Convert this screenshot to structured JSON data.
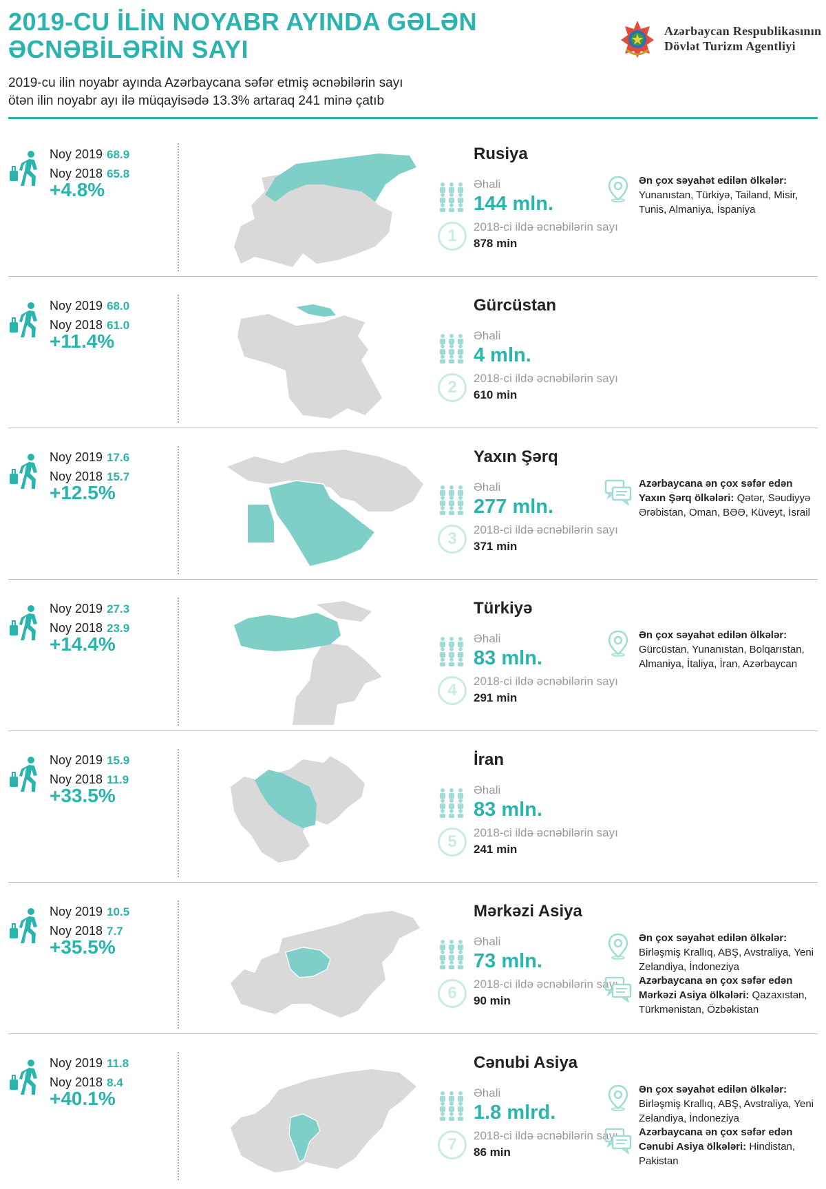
{
  "header": {
    "title_line1": "2019-CU İLİN NOYABR AYINDA GƏLƏN",
    "title_line2": "ƏCNƏBİLƏRİN SAYI",
    "subtitle_line1": "2019-cu ilin noyabr ayında Azərbaycana səfər etmiş əcnəbilərin sayı",
    "subtitle_line2": "ötən ilin noyabr ayı ilə müqayisədə 13.3% artaraq 241 minə çatıb",
    "agency_line1": "Azərbaycan Respublikasının",
    "agency_line2": "Dövlət Turizm Agentliyi"
  },
  "labels": {
    "nov2019": "Noy 2019",
    "nov2018": "Noy 2018",
    "population": "Əhali",
    "visitors_2018": "2018-ci ildə əcnəbilərin sayı"
  },
  "colors": {
    "accent": "#2bb3ad",
    "map_grey": "#d9d9d9"
  },
  "rows": [
    {
      "nov2019": "68.9",
      "nov2018": "65.8",
      "change": "+4.8%",
      "country": "Rusiya",
      "population": "144 mln.",
      "rank": "1",
      "visitors_2018": "878 min",
      "info": [
        {
          "icon": "location-pin-icon",
          "heading": "Ən çox səyahət edilən ölkələr:",
          "text": "Yunanıstan, Türkiyə, Tailand, Misir, Tunis, Almaniya, İspaniya"
        }
      ]
    },
    {
      "nov2019": "68.0",
      "nov2018": "61.0",
      "change": "+11.4%",
      "country": "Gürcüstan",
      "population": "4 mln.",
      "rank": "2",
      "visitors_2018": "610 min",
      "info": []
    },
    {
      "nov2019": "17.6",
      "nov2018": "15.7",
      "change": "+12.5%",
      "country": "Yaxın Şərq",
      "population": "277 mln.",
      "rank": "3",
      "visitors_2018": "371 min",
      "info": [
        {
          "icon": "chat-bubbles-icon",
          "heading": "Azərbaycana ən çox səfər edən Yaxın Şərq ölkələri:",
          "text": "Qətər, Səudiyyə Ərəbistan, Oman, BƏƏ, Küveyt, İsrail"
        }
      ]
    },
    {
      "nov2019": "27.3",
      "nov2018": "23.9",
      "change": "+14.4%",
      "country": "Türkiyə",
      "population": "83 mln.",
      "rank": "4",
      "visitors_2018": "291 min",
      "info": [
        {
          "icon": "location-pin-icon",
          "heading": "Ən çox səyahət edilən ölkələr:",
          "text": "Gürcüstan, Yunanıstan, Bolqarıstan, Almaniya, İtaliya, İran, Azərbaycan"
        }
      ]
    },
    {
      "nov2019": "15.9",
      "nov2018": "11.9",
      "change": "+33.5%",
      "country": "İran",
      "population": "83 mln.",
      "rank": "5",
      "visitors_2018": "241 min",
      "info": []
    },
    {
      "nov2019": "10.5",
      "nov2018": "7.7",
      "change": "+35.5%",
      "country": "Mərkəzi Asiya",
      "population": "73 mln.",
      "rank": "6",
      "visitors_2018": "90 min",
      "info": [
        {
          "icon": "location-pin-icon",
          "heading": "Ən çox səyahət edilən ölkələr:",
          "text": "Birləşmiş Krallıq, ABŞ, Avstraliya, Yeni Zelandiya, İndoneziya"
        },
        {
          "icon": "chat-bubbles-icon",
          "heading": "Azərbaycana ən çox səfər edən Mərkəzi Asiya ölkələri:",
          "text": "Qazaxıstan, Türkmənistan, Özbəkistan"
        }
      ]
    },
    {
      "nov2019": "11.8",
      "nov2018": "8.4",
      "change": "+40.1%",
      "country": "Cənubi Asiya",
      "population": "1.8 mlrd.",
      "rank": "7",
      "visitors_2018": "86  min",
      "info": [
        {
          "icon": "location-pin-icon",
          "heading": "Ən çox səyahət edilən ölkələr:",
          "text": "Birləşmiş Krallıq, ABŞ, Avstraliya, Yeni Zelandiya, İndoneziya"
        },
        {
          "icon": "chat-bubbles-icon",
          "heading": "Azərbaycana ən çox səfər edən Cənubi Asiya ölkələri:",
          "text": "Hindistan, Pakistan"
        }
      ]
    }
  ]
}
